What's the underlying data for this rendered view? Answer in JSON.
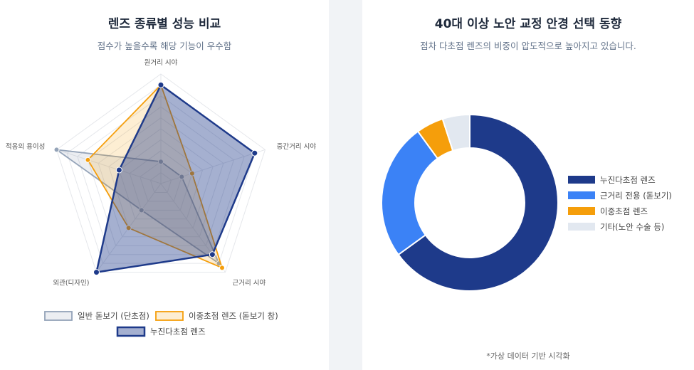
{
  "radar": {
    "title": "렌즈 종류별 성능 비교",
    "subtitle": "점수가 높을수록 해당 기능이 우수함",
    "chart_data": {
      "type": "radar",
      "axes": [
        "원거리 시야",
        "중간거리 시야",
        "근거리 시야",
        "외관(디자인)",
        "적응의 용이성"
      ],
      "range": [
        0,
        10
      ],
      "grid": true,
      "legend_position": "bottom",
      "series": [
        {
          "name": "일반 돋보기 (단초점)",
          "values": [
            2,
            2,
            9,
            3,
            10
          ],
          "color": "#94a3b8"
        },
        {
          "name": "이중초점 렌즈 (돋보기 창)",
          "values": [
            9,
            3,
            9.5,
            5,
            7
          ],
          "color": "#f59e0b"
        },
        {
          "name": "누진다초점 렌즈",
          "values": [
            9,
            9,
            8,
            10,
            4
          ],
          "color": "#1e3a8a"
        }
      ]
    }
  },
  "donut": {
    "title": "40대 이상 노안 교정 안경 선택 동향",
    "subtitle": "점차 다초점 렌즈의 비중이 압도적으로 높아지고 있습니다.",
    "footnote": "*가상 데이터 기반 시각화",
    "chart_data": {
      "type": "pie",
      "legend_position": "right",
      "categories": [
        "누진다초점 렌즈",
        "근거리 전용 (돋보기)",
        "이중초점 렌즈",
        "기타(노안 수술 등)"
      ],
      "values": [
        65,
        25,
        5,
        5
      ],
      "colors": [
        "#1e3a8a",
        "#3b82f6",
        "#f59e0b",
        "#e2e8f0"
      ]
    }
  }
}
